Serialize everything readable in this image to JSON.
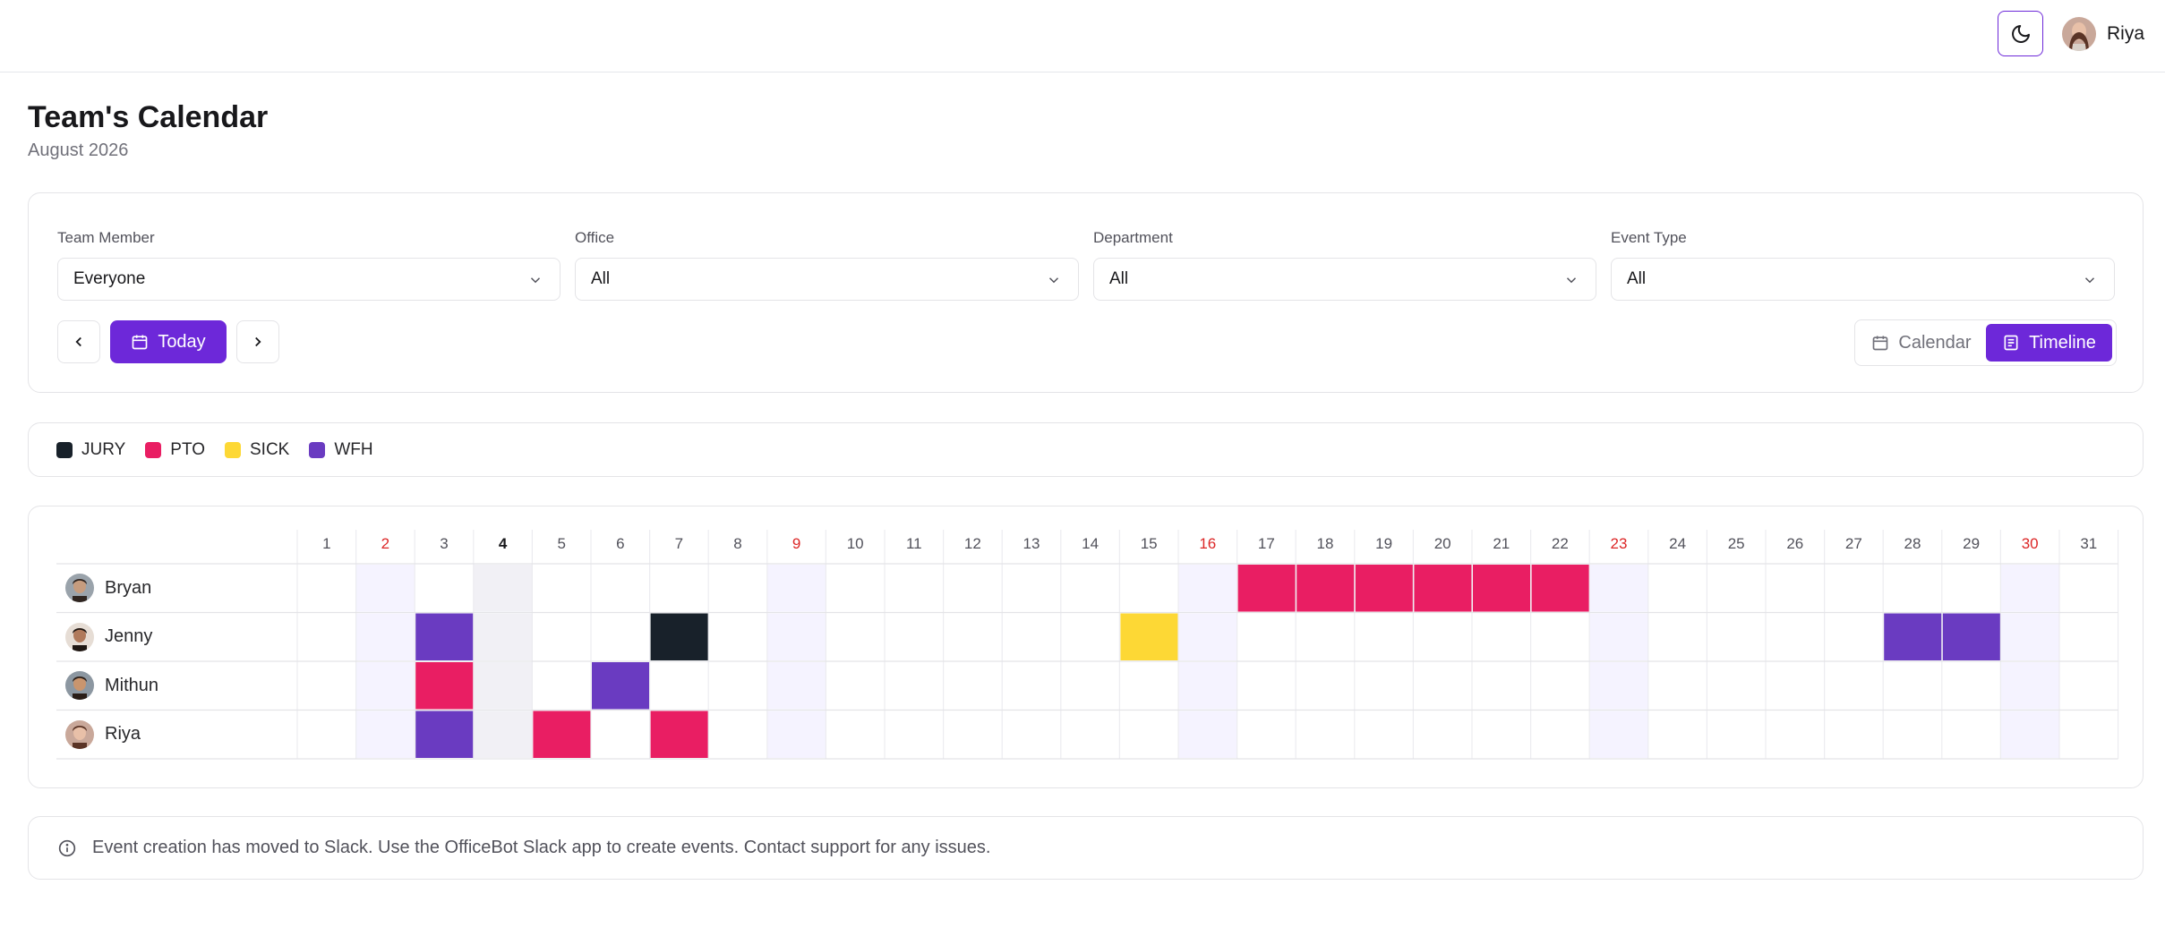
{
  "user": {
    "name": "Riya"
  },
  "header": {
    "title": "Team's Calendar",
    "subtitle": "August 2026"
  },
  "filters": [
    {
      "label": "Team Member",
      "value": "Everyone"
    },
    {
      "label": "Office",
      "value": "All"
    },
    {
      "label": "Department",
      "value": "All"
    },
    {
      "label": "Event Type",
      "value": "All"
    }
  ],
  "toolbar": {
    "today_label": "Today",
    "calendar_label": "Calendar",
    "timeline_label": "Timeline",
    "active_view": "Timeline"
  },
  "legend": [
    {
      "label": "JURY",
      "color": "#18212a"
    },
    {
      "label": "PTO",
      "color": "#e91e63"
    },
    {
      "label": "SICK",
      "color": "#fdd835"
    },
    {
      "label": "WFH",
      "color": "#6a3bc1"
    }
  ],
  "timeline": {
    "days": [
      1,
      2,
      3,
      4,
      5,
      6,
      7,
      8,
      9,
      10,
      11,
      12,
      13,
      14,
      15,
      16,
      17,
      18,
      19,
      20,
      21,
      22,
      23,
      24,
      25,
      26,
      27,
      28,
      29,
      30,
      31
    ],
    "weekend_days": [
      2,
      9,
      16,
      23,
      30
    ],
    "today": 4,
    "members": [
      {
        "name": "Bryan",
        "events": [
          {
            "day": 17,
            "type": "PTO"
          },
          {
            "day": 18,
            "type": "PTO"
          },
          {
            "day": 19,
            "type": "PTO"
          },
          {
            "day": 20,
            "type": "PTO"
          },
          {
            "day": 21,
            "type": "PTO"
          },
          {
            "day": 22,
            "type": "PTO"
          }
        ]
      },
      {
        "name": "Jenny",
        "events": [
          {
            "day": 3,
            "type": "WFH"
          },
          {
            "day": 7,
            "type": "JURY"
          },
          {
            "day": 15,
            "type": "SICK"
          },
          {
            "day": 28,
            "type": "WFH"
          },
          {
            "day": 29,
            "type": "WFH"
          }
        ]
      },
      {
        "name": "Mithun",
        "events": [
          {
            "day": 3,
            "type": "PTO"
          },
          {
            "day": 6,
            "type": "WFH"
          }
        ]
      },
      {
        "name": "Riya",
        "events": [
          {
            "day": 3,
            "type": "WFH"
          },
          {
            "day": 5,
            "type": "PTO"
          },
          {
            "day": 7,
            "type": "PTO"
          }
        ]
      }
    ]
  },
  "notice": {
    "text": "Event creation has moved to Slack. Use the OfficeBot Slack app to create events. Contact support for any issues."
  },
  "colors": {
    "accent": "#6d28d9",
    "weekend_cell": "#f5f3ff",
    "today_cell": "#f1f0f5"
  }
}
